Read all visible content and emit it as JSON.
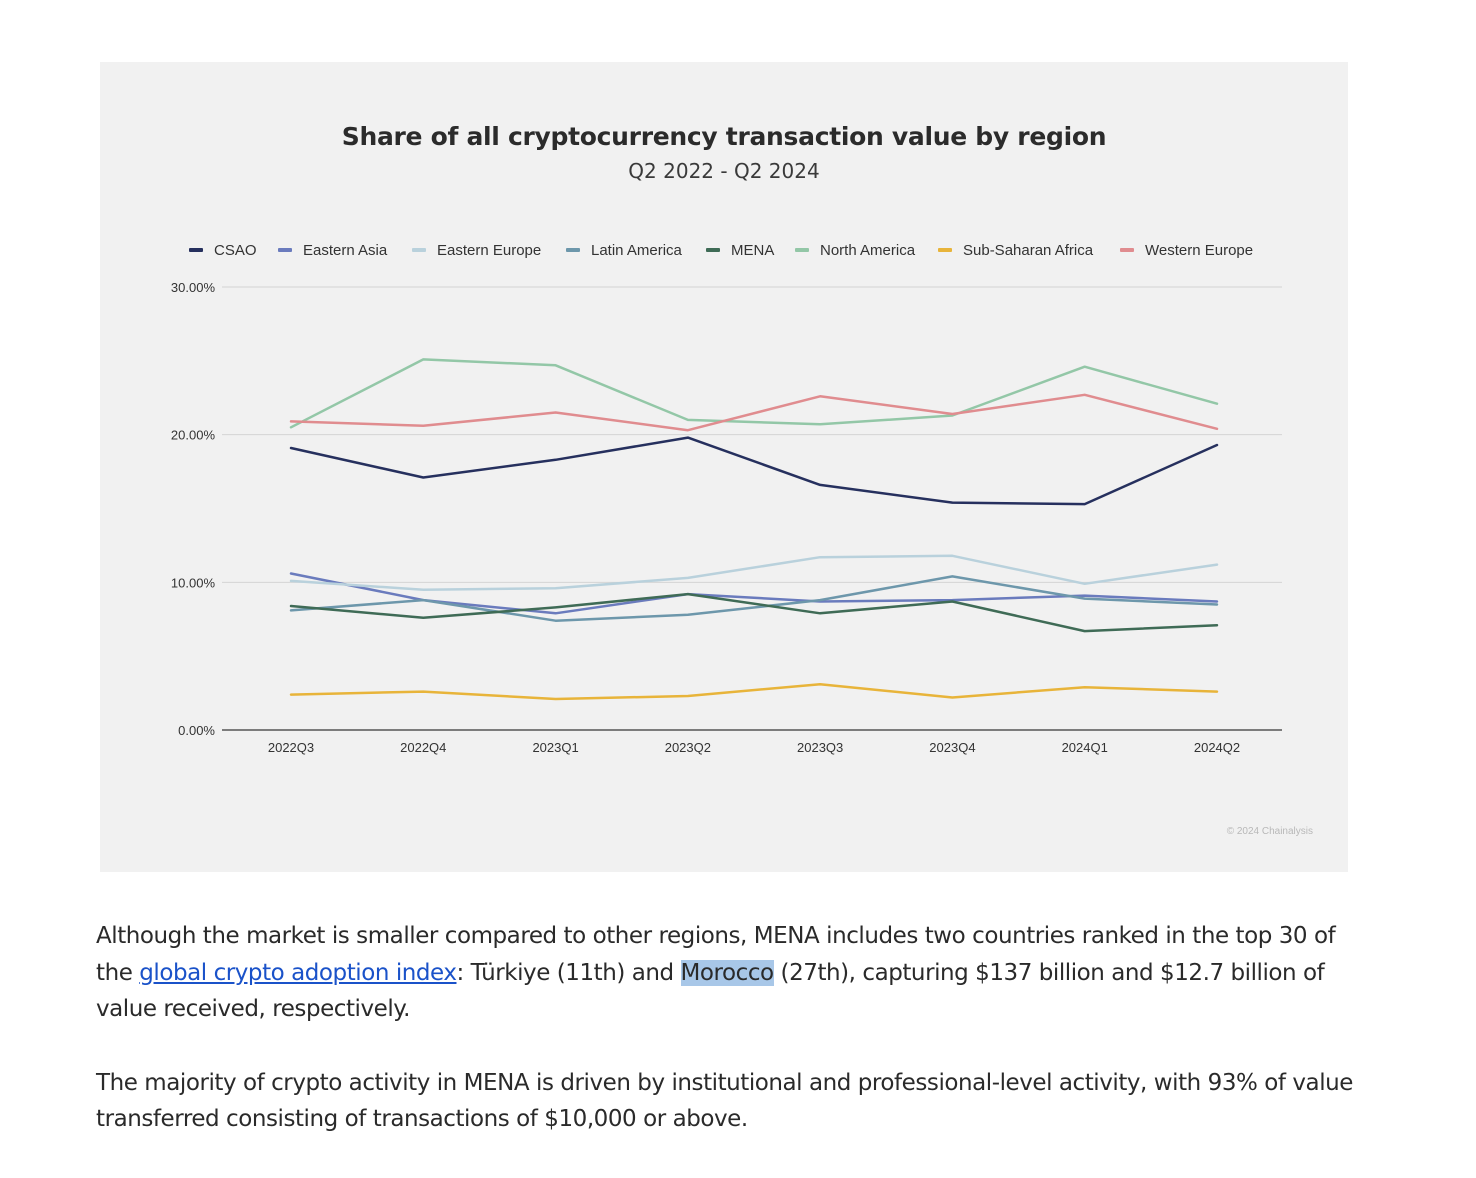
{
  "chart_data": {
    "type": "line",
    "title": "Share of all cryptocurrency transaction value by region",
    "subtitle": "Q2 2022 - Q2 2024",
    "categories": [
      "2022Q3",
      "2022Q4",
      "2023Q1",
      "2023Q2",
      "2023Q3",
      "2023Q4",
      "2024Q1",
      "2024Q2"
    ],
    "ylim": [
      0,
      30
    ],
    "yticks": [
      "0.00%",
      "10.00%",
      "20.00%",
      "30.00%"
    ],
    "grid": true,
    "legend_position": "top",
    "series": [
      {
        "name": "CSAO",
        "color": "#26305e",
        "values": [
          19.1,
          17.1,
          18.3,
          19.8,
          16.6,
          15.4,
          15.3,
          19.3
        ]
      },
      {
        "name": "Eastern Asia",
        "color": "#6a7bbd",
        "values": [
          10.6,
          8.8,
          7.9,
          9.2,
          8.7,
          8.8,
          9.1,
          8.7
        ]
      },
      {
        "name": "Eastern Europe",
        "color": "#b9d1dc",
        "values": [
          10.1,
          9.5,
          9.6,
          10.3,
          11.7,
          11.8,
          9.9,
          11.2
        ]
      },
      {
        "name": "Latin America",
        "color": "#6d97ab",
        "values": [
          8.1,
          8.8,
          7.4,
          7.8,
          8.8,
          10.4,
          8.9,
          8.5
        ]
      },
      {
        "name": "MENA",
        "color": "#3f6b56",
        "values": [
          8.4,
          7.6,
          8.3,
          9.2,
          7.9,
          8.7,
          6.7,
          7.1
        ]
      },
      {
        "name": "North America",
        "color": "#93c7a7",
        "values": [
          20.5,
          25.1,
          24.7,
          21.0,
          20.7,
          21.3,
          24.6,
          22.1
        ]
      },
      {
        "name": "Sub-Saharan Africa",
        "color": "#e8b43a",
        "values": [
          2.4,
          2.6,
          2.1,
          2.3,
          3.1,
          2.2,
          2.9,
          2.6
        ]
      },
      {
        "name": "Western Europe",
        "color": "#e08c8f",
        "values": [
          20.9,
          20.6,
          21.5,
          20.3,
          22.6,
          21.4,
          22.7,
          20.4
        ]
      }
    ],
    "copyright": "© 2024 Chainalysis"
  },
  "article": {
    "p1_a": "Although the market is smaller compared to other regions, MENA includes two countries ranked in the top 30 of the ",
    "p1_link": "global crypto adoption index",
    "p1_b": ": Türkiye (11th) and ",
    "p1_highlight": "Morocco",
    "p1_c": " (27th), capturing $137 billion and $12.7 billion of value received, respectively.",
    "p2": "The majority of crypto activity in MENA is driven by institutional and professional-level activity, with 93% of value transferred consisting of transactions of $10,000 or above."
  }
}
